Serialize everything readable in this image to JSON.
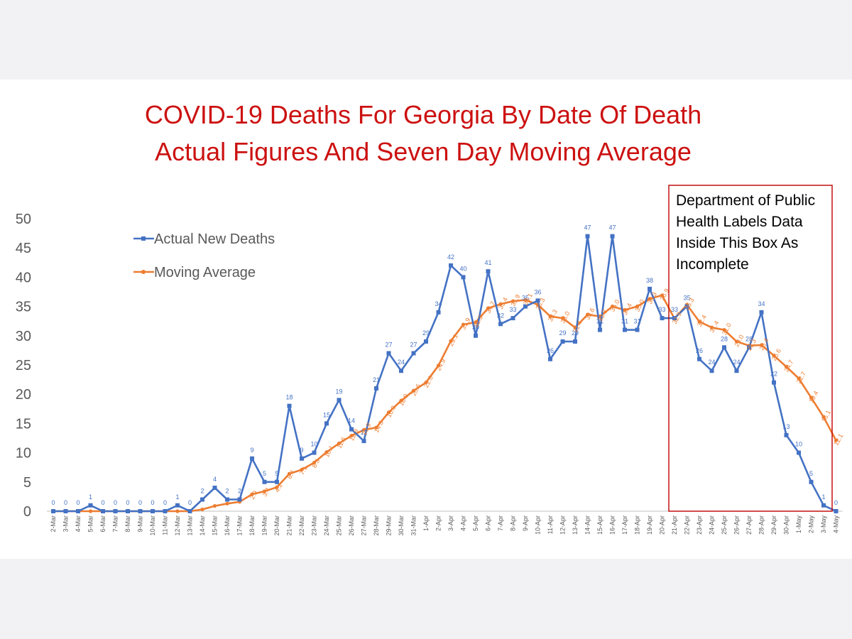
{
  "chart_data": {
    "type": "line",
    "title": "COVID-19 Deaths For Georgia By Date Of Death",
    "subtitle": "Actual Figures And Seven Day Moving Average",
    "xlabel": "",
    "ylabel": "",
    "ylim": [
      0,
      50
    ],
    "yticks": [
      "0",
      "5",
      "10",
      "15",
      "20",
      "25",
      "30",
      "35",
      "40",
      "45",
      "50"
    ],
    "grid": false,
    "legend_position": "top-left",
    "categories": [
      "2-Mar",
      "3-Mar",
      "4-Mar",
      "5-Mar",
      "6-Mar",
      "7-Mar",
      "8-Mar",
      "9-Mar",
      "10-Mar",
      "11-Mar",
      "12-Mar",
      "13-Mar",
      "14-Mar",
      "15-Mar",
      "16-Mar",
      "17-Mar",
      "18-Mar",
      "19-Mar",
      "20-Mar",
      "21-Mar",
      "22-Mar",
      "23-Mar",
      "24-Mar",
      "25-Mar",
      "26-Mar",
      "27-Mar",
      "28-Mar",
      "29-Mar",
      "30-Mar",
      "31-Mar",
      "1-Apr",
      "2-Apr",
      "3-Apr",
      "4-Apr",
      "5-Apr",
      "6-Apr",
      "7-Apr",
      "8-Apr",
      "9-Apr",
      "10-Apr",
      "11-Apr",
      "12-Apr",
      "13-Apr",
      "14-Apr",
      "15-Apr",
      "16-Apr",
      "17-Apr",
      "18-Apr",
      "19-Apr",
      "20-Apr",
      "21-Apr",
      "22-Apr",
      "23-Apr",
      "24-Apr",
      "25-Apr",
      "26-Apr",
      "27-Apr",
      "28-Apr",
      "29-Apr",
      "30-Apr",
      "1-May",
      "2-May",
      "3-May",
      "4-May"
    ],
    "series": [
      {
        "name": "Actual New Deaths",
        "color": "#4472c4",
        "marker": "square",
        "values": [
          0,
          0,
          0,
          1,
          0,
          0,
          0,
          0,
          0,
          0,
          1,
          0,
          2,
          4,
          2,
          2,
          9,
          5,
          5,
          18,
          9,
          10,
          15,
          19,
          14,
          12,
          21,
          27,
          24,
          27,
          29,
          34,
          42,
          40,
          30,
          41,
          32,
          33,
          35,
          36,
          26,
          29,
          29,
          47,
          31,
          47,
          31,
          31,
          38,
          33,
          33,
          35,
          26,
          24,
          28,
          24,
          28,
          34,
          22,
          13,
          10,
          5,
          1,
          0
        ],
        "labels": [
          "0",
          "0",
          "0",
          "1",
          "0",
          "0",
          "0",
          "0",
          "0",
          "0",
          "1",
          "0",
          "2",
          "4",
          "2",
          "2",
          "9",
          "5",
          "5",
          "18",
          "9",
          "10",
          "15",
          "19",
          "14",
          "12",
          "21",
          "27",
          "24",
          "27",
          "29",
          "34",
          "42",
          "40",
          "30",
          "41",
          "32",
          "33",
          "35",
          "36",
          "26",
          "29",
          "29",
          "47",
          "31",
          "47",
          "31",
          "31",
          "38",
          "33",
          "33",
          "35",
          "26",
          "24",
          "28",
          "24",
          "28",
          "34",
          "22",
          "13",
          "10",
          "5",
          "1",
          "0"
        ]
      },
      {
        "name": "Moving Average",
        "color": "#ed7d31",
        "marker": "circle",
        "values": [
          0,
          0,
          0,
          0,
          0,
          0,
          0,
          0,
          0,
          0,
          0,
          0,
          0.3,
          0.9,
          1.3,
          1.6,
          2.9,
          3.4,
          4.1,
          6.4,
          7.1,
          8.3,
          10.1,
          11.6,
          12.9,
          13.9,
          14.3,
          16.9,
          18.9,
          20.6,
          22.0,
          24.9,
          29.1,
          31.9,
          32.3,
          34.7,
          35.4,
          35.9,
          36.1,
          35.3,
          33.3,
          33.0,
          31.4,
          33.6,
          33.3,
          35.0,
          34.4,
          35.0,
          36.3,
          36.9,
          32.9,
          35.3,
          32.4,
          31.4,
          31.0,
          29.0,
          28.3,
          28.4,
          26.6,
          24.7,
          22.7,
          19.4,
          16.1,
          12.1
        ],
        "labels": [
          "",
          "",
          "",
          "",
          "",
          "",
          "",
          "",
          "",
          "",
          "",
          "",
          "",
          "",
          "",
          "",
          "2.9",
          "3.4",
          "4.1",
          "6.4",
          "7.1",
          "8.3",
          "10.1",
          "11.6",
          "12.9",
          "13.9",
          "14.3",
          "16.9",
          "18.9",
          "20.6",
          "22.0",
          "24.9",
          "29.1",
          "31.9",
          "32.3",
          "34.7",
          "35.4",
          "35.9",
          "36.1",
          "35.3",
          "33.3",
          "33.0",
          "31.4",
          "33.6",
          "33.3",
          "35.0",
          "34.4",
          "35.0",
          "36.3",
          "36.9",
          "32.9",
          "35.3",
          "32.4",
          "31.4",
          "31.0",
          "29.0",
          "28.3",
          "28.4",
          "26.6",
          "24.7",
          "22.7",
          "19.4",
          "16.1",
          "12.1"
        ]
      }
    ],
    "annotation": {
      "lines": [
        "Department of Public",
        "Health Labels Data",
        "Inside This Box As",
        "Incomplete"
      ],
      "border_color": "#c00000",
      "from_category": "21-Apr",
      "to_category": "4-May"
    },
    "title_color": "#cc1111",
    "axis_text_color": "#595959"
  }
}
